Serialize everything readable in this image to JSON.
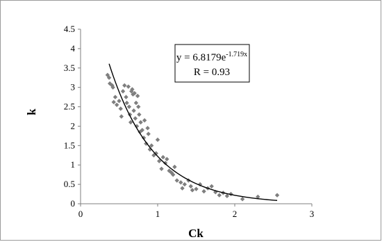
{
  "chart_data": {
    "type": "scatter",
    "title": "",
    "xlabel": "Ck",
    "ylabel": "k",
    "xlim": [
      0,
      3
    ],
    "ylim": [
      0,
      4.5
    ],
    "x_ticks": [
      "0",
      "1",
      "2",
      "3"
    ],
    "y_ticks": [
      "0",
      "0.5",
      "1",
      "1.5",
      "2",
      "2.5",
      "3",
      "3.5",
      "4",
      "4.5"
    ],
    "grid": false,
    "marker_color": "#7f7f7f",
    "line_color": "#000000",
    "equation_prefix": "y = 6.8179e",
    "equation_exponent": "-1.719x",
    "r_text": "R = 0.93",
    "fit": {
      "a": 6.8179,
      "b": -1.719,
      "x_range": [
        0.37,
        2.55
      ]
    },
    "points": [
      [
        0.35,
        3.32
      ],
      [
        0.37,
        3.25
      ],
      [
        0.38,
        3.1
      ],
      [
        0.41,
        3.05
      ],
      [
        0.42,
        3.0
      ],
      [
        0.43,
        2.62
      ],
      [
        0.45,
        2.75
      ],
      [
        0.47,
        2.55
      ],
      [
        0.5,
        2.65
      ],
      [
        0.52,
        2.45
      ],
      [
        0.53,
        2.25
      ],
      [
        0.55,
        2.9
      ],
      [
        0.57,
        3.05
      ],
      [
        0.59,
        2.75
      ],
      [
        0.6,
        2.6
      ],
      [
        0.62,
        3.02
      ],
      [
        0.63,
        2.5
      ],
      [
        0.64,
        2.3
      ],
      [
        0.65,
        2.1
      ],
      [
        0.66,
        2.9
      ],
      [
        0.67,
        2.95
      ],
      [
        0.68,
        2.82
      ],
      [
        0.69,
        2.4
      ],
      [
        0.7,
        2.85
      ],
      [
        0.71,
        2.2
      ],
      [
        0.72,
        2.6
      ],
      [
        0.73,
        2.0
      ],
      [
        0.74,
        2.78
      ],
      [
        0.75,
        2.5
      ],
      [
        0.76,
        2.3
      ],
      [
        0.77,
        1.85
      ],
      [
        0.78,
        2.1
      ],
      [
        0.8,
        1.9
      ],
      [
        0.82,
        1.7
      ],
      [
        0.83,
        2.15
      ],
      [
        0.85,
        1.55
      ],
      [
        0.87,
        1.95
      ],
      [
        0.88,
        1.8
      ],
      [
        0.9,
        1.4
      ],
      [
        0.92,
        1.5
      ],
      [
        0.95,
        1.25
      ],
      [
        0.98,
        1.3
      ],
      [
        1.0,
        1.65
      ],
      [
        1.02,
        1.1
      ],
      [
        1.05,
        0.9
      ],
      [
        1.07,
        1.2
      ],
      [
        1.1,
        1.05
      ],
      [
        1.12,
        1.15
      ],
      [
        1.15,
        0.85
      ],
      [
        1.18,
        0.8
      ],
      [
        1.2,
        0.75
      ],
      [
        1.22,
        0.95
      ],
      [
        1.25,
        0.6
      ],
      [
        1.3,
        0.55
      ],
      [
        1.32,
        0.4
      ],
      [
        1.35,
        0.5
      ],
      [
        1.4,
        0.6
      ],
      [
        1.43,
        0.45
      ],
      [
        1.45,
        0.35
      ],
      [
        1.5,
        0.38
      ],
      [
        1.55,
        0.5
      ],
      [
        1.6,
        0.32
      ],
      [
        1.65,
        0.4
      ],
      [
        1.7,
        0.45
      ],
      [
        1.75,
        0.3
      ],
      [
        1.8,
        0.22
      ],
      [
        1.85,
        0.28
      ],
      [
        1.9,
        0.2
      ],
      [
        1.95,
        0.25
      ],
      [
        2.1,
        0.12
      ],
      [
        2.3,
        0.18
      ],
      [
        2.55,
        0.22
      ]
    ]
  }
}
